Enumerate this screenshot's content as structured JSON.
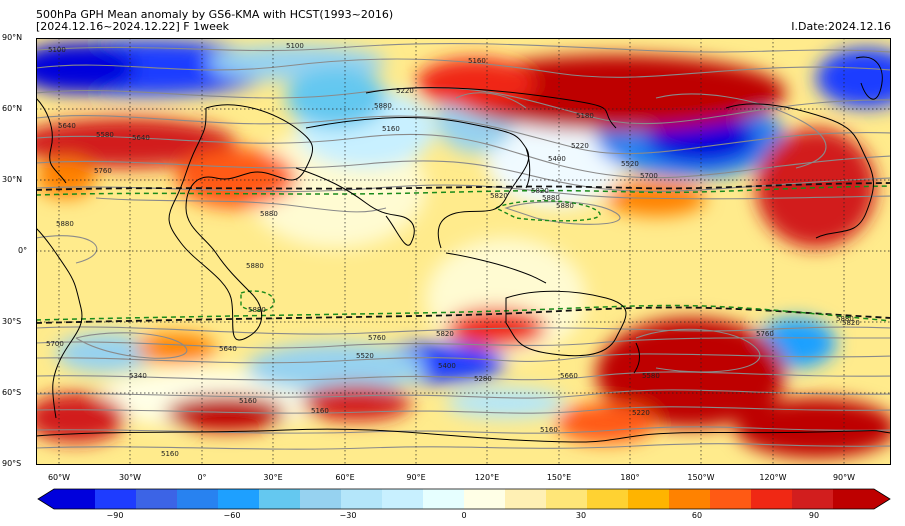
{
  "header": {
    "title_line1": "500hPa GPH Mean anomaly by GS6-KMA with HCST(1993~2016)",
    "title_line2": "[2024.12.16~2024.12.22] F 1week",
    "issue_date": "I.Date:2024.12.16"
  },
  "axes": {
    "lat_labels": [
      "90°N",
      "60°N",
      "30°N",
      "0°",
      "30°S",
      "60°S",
      "90°S"
    ],
    "lon_labels": [
      "60°W",
      "30°W",
      "0°",
      "30°E",
      "60°E",
      "90°E",
      "120°E",
      "150°E",
      "180°",
      "150°W",
      "120°W",
      "90°W"
    ]
  },
  "colorbar": {
    "tick_labels": [
      "−90",
      "−60",
      "−30",
      "0",
      "30",
      "60",
      "90"
    ],
    "colors": [
      "#0000dc",
      "#1e3cff",
      "#3c64e6",
      "#2882f0",
      "#1ea0ff",
      "#64c8f0",
      "#96d2f0",
      "#b4e6fa",
      "#c8f0ff",
      "#e6ffff",
      "#ffffe6",
      "#fff0b4",
      "#ffe678",
      "#ffd232",
      "#ffb400",
      "#ff8200",
      "#ff5a14",
      "#f02814",
      "#d21e1e",
      "#be0000"
    ],
    "range": [
      -100,
      100
    ]
  },
  "contour_labels": [
    "5100",
    "5100",
    "5160",
    "5220",
    "5880",
    "5160",
    "5180",
    "5220",
    "5400",
    "5520",
    "5700",
    "5640",
    "5760",
    "5580",
    "5640",
    "5820",
    "5880",
    "5880",
    "5820",
    "5880",
    "5880",
    "5880",
    "5880",
    "5880",
    "5820",
    "5760",
    "5640",
    "5520",
    "5400",
    "5280",
    "5340",
    "5160",
    "5160",
    "5160",
    "5220",
    "5160",
    "5580",
    "5660",
    "5700",
    "5760",
    "5820"
  ],
  "legend_colors": {
    "dashed_black": "#111111",
    "dashed_green": "#1a8a1a",
    "contour_gray": "#8a8a8a",
    "coast": "#000000"
  }
}
